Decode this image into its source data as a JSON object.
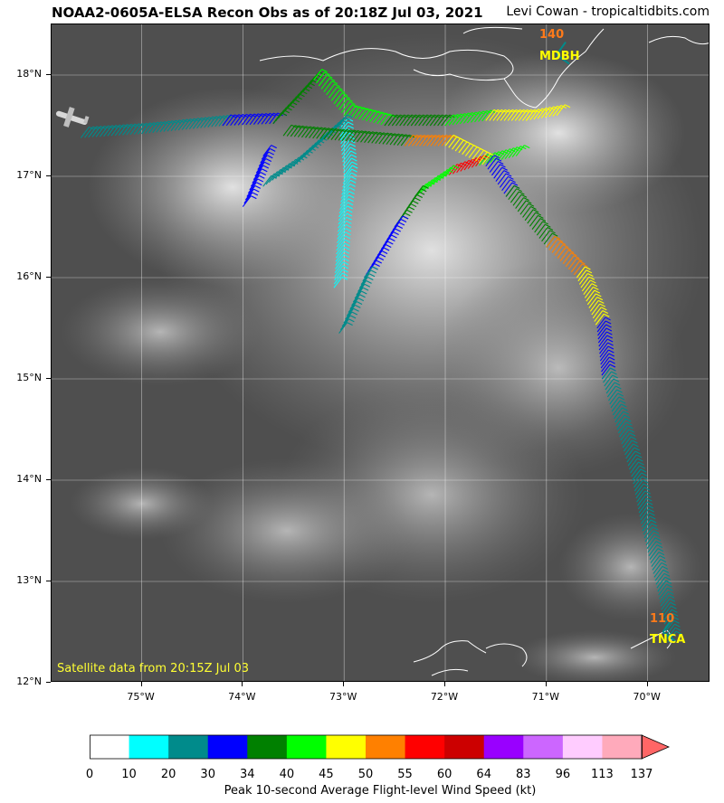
{
  "title": "NOAA2-0605A-ELSA Recon Obs as of 20:18Z Jul 03, 2021",
  "credit": "Levi Cowan - tropicaltidbits.com",
  "satellite_label": "Satellite data from 20:15Z Jul 03",
  "map": {
    "extent": {
      "lon_min": -75.89,
      "lon_max": -69.38,
      "lat_min": 12.0,
      "lat_max": 18.5
    },
    "lat_labels": [
      "18°N",
      "17°N",
      "16°N",
      "15°N",
      "14°N",
      "13°N",
      "12°N"
    ],
    "lat_values": [
      18,
      17,
      16,
      15,
      14,
      13,
      12
    ],
    "lon_labels": [
      "75°W",
      "74°W",
      "73°W",
      "72°W",
      "71°W",
      "70°W"
    ],
    "lon_values": [
      -75,
      -74,
      -73,
      -72,
      -71,
      -70
    ],
    "stations": [
      {
        "id": "MDBH",
        "value": "140",
        "lon": -70.9,
        "lat": 18.2
      },
      {
        "id": "TNCA",
        "value": "110",
        "lon": -69.85,
        "lat": 12.5
      }
    ],
    "flight_track": [
      [
        -75.6,
        17.38
      ],
      [
        -75.0,
        17.42
      ],
      [
        -74.2,
        17.5
      ],
      [
        -73.7,
        17.52
      ],
      [
        -73.3,
        17.95
      ],
      [
        -73.0,
        17.6
      ],
      [
        -72.6,
        17.5
      ],
      [
        -72.0,
        17.5
      ],
      [
        -71.6,
        17.55
      ],
      [
        -71.2,
        17.55
      ],
      [
        -70.9,
        17.6
      ],
      [
        -71.3,
        17.2
      ],
      [
        -71.7,
        17.1
      ],
      [
        -72.0,
        17.0
      ],
      [
        -72.3,
        16.8
      ],
      [
        -72.5,
        16.5
      ],
      [
        -72.8,
        16.0
      ],
      [
        -73.05,
        15.45
      ],
      [
        -73.1,
        15.9
      ],
      [
        -73.05,
        16.6
      ],
      [
        -73.0,
        17.0
      ],
      [
        -73.05,
        17.5
      ],
      [
        -73.5,
        17.1
      ],
      [
        -73.8,
        16.9
      ],
      [
        -74.0,
        16.7
      ],
      [
        -73.8,
        17.2
      ],
      [
        -73.6,
        17.4
      ],
      [
        -72.4,
        17.3
      ],
      [
        -72.0,
        17.3
      ],
      [
        -71.6,
        17.1
      ],
      [
        -71.4,
        16.8
      ],
      [
        -71.0,
        16.3
      ],
      [
        -70.7,
        16.0
      ],
      [
        -70.5,
        15.5
      ],
      [
        -70.45,
        15.0
      ],
      [
        -70.3,
        14.5
      ],
      [
        -70.15,
        14.0
      ],
      [
        -70.05,
        13.5
      ],
      [
        -69.9,
        12.9
      ],
      [
        -69.8,
        12.4
      ]
    ]
  },
  "colorbar": {
    "title": "Peak 10-second Average Flight-level Wind Speed (kt)",
    "labels": [
      "0",
      "10",
      "20",
      "30",
      "34",
      "40",
      "45",
      "50",
      "55",
      "60",
      "64",
      "83",
      "96",
      "113",
      "137"
    ],
    "colors": [
      "#ffffff",
      "#00ffff",
      "#008b8b",
      "#0000ff",
      "#008000",
      "#00ff00",
      "#ffff00",
      "#ff8000",
      "#ff0000",
      "#cc0000",
      "#9900ff",
      "#cc66ff",
      "#ffccff",
      "#ffaabb",
      "#ff6666"
    ]
  }
}
